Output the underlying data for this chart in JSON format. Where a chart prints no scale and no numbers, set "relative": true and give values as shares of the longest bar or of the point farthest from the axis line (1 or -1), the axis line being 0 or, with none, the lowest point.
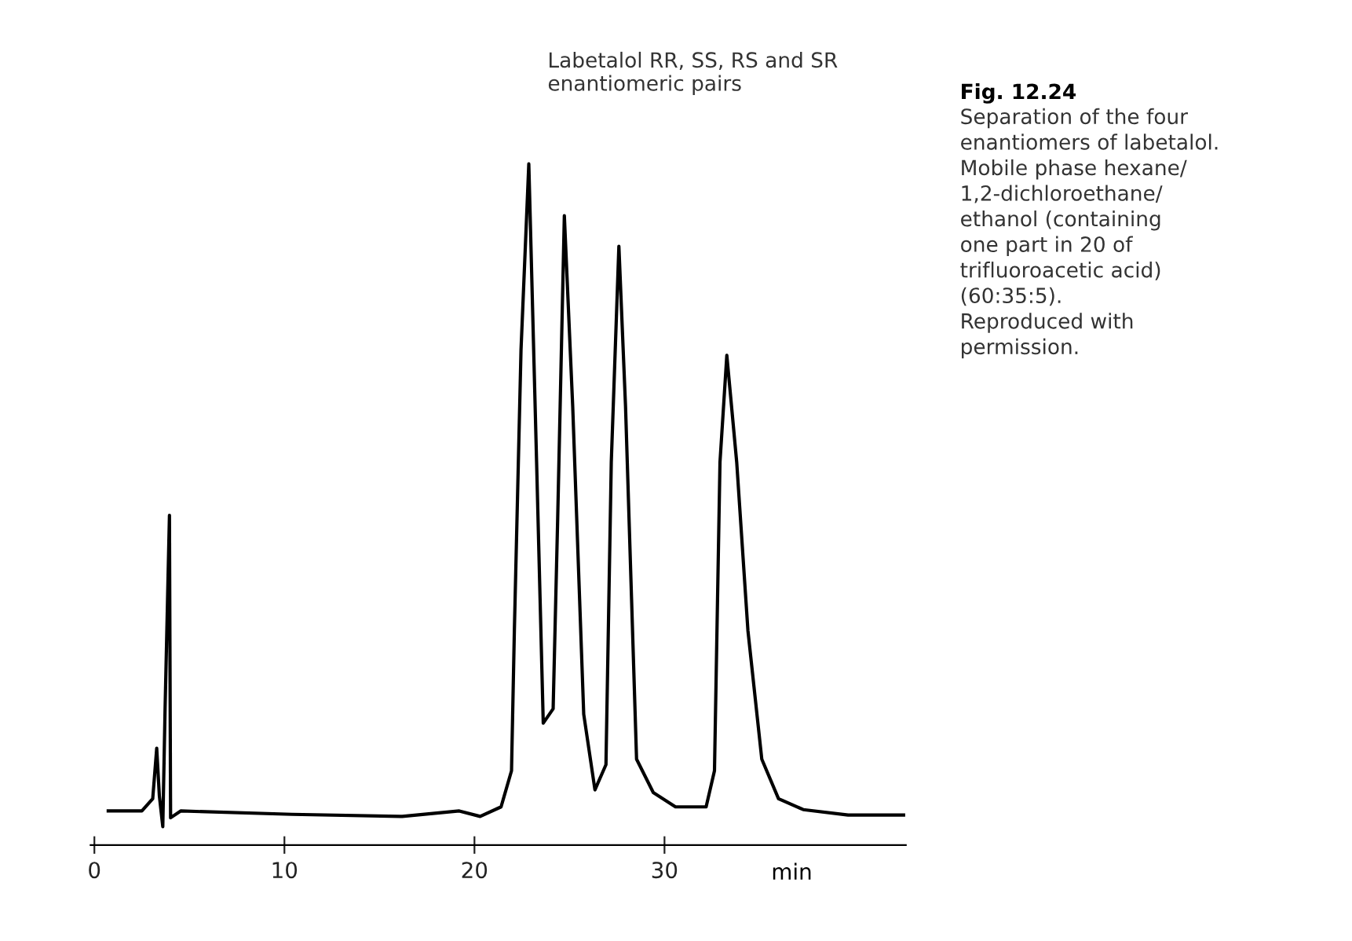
{
  "chart_data": {
    "type": "line",
    "relative": true,
    "title": "Fig. 12.24",
    "xlabel": "min",
    "x": [
      0.73,
      2.5,
      3.07,
      3.28,
      3.42,
      3.6,
      3.72,
      3.95,
      4.01,
      4.54,
      10.4,
      16.2,
      19.2,
      20.3,
      21.4,
      21.95,
      22.1,
      22.45,
      22.86,
      23.27,
      23.62,
      24.14,
      24.38,
      24.73,
      25.17,
      25.75,
      26.34,
      26.92,
      27.2,
      27.6,
      27.95,
      28.53,
      29.41,
      30.58,
      32.19,
      32.63,
      32.92,
      33.28,
      33.8,
      34.39,
      35.12,
      36.0,
      37.3,
      39.66,
      42.58
    ],
    "series": [
      {
        "color": "#000000",
        "values": [
          0.05,
          0.05,
          0.068,
          0.142,
          0.072,
          0.027,
          0.2,
          0.484,
          0.04,
          0.05,
          0.045,
          0.042,
          0.05,
          0.042,
          0.056,
          0.109,
          0.315,
          0.727,
          1.0,
          0.562,
          0.179,
          0.2,
          0.48,
          0.924,
          0.644,
          0.192,
          0.081,
          0.118,
          0.562,
          0.879,
          0.644,
          0.126,
          0.077,
          0.056,
          0.056,
          0.109,
          0.562,
          0.719,
          0.562,
          0.315,
          0.126,
          0.068,
          0.052,
          0.044,
          0.044
        ]
      }
    ],
    "xlim": [
      -0.2,
      42.7
    ],
    "xticks": [
      0,
      10,
      20,
      30
    ],
    "grid": false,
    "legend": false,
    "marker": "none",
    "line_style": "solid",
    "annotations": [
      "Labetalol RR, SS, RS and SR\nenantiomeric pairs",
      "Separation of the four\nenantiomers of labetalol.\nMobile phase hexane/\n1,2-dichloroethane/\nethanol (containing\none part in 20 of\ntrifluoroacetic acid)\n(60:35:5).\nReproduced with\npermission."
    ]
  }
}
